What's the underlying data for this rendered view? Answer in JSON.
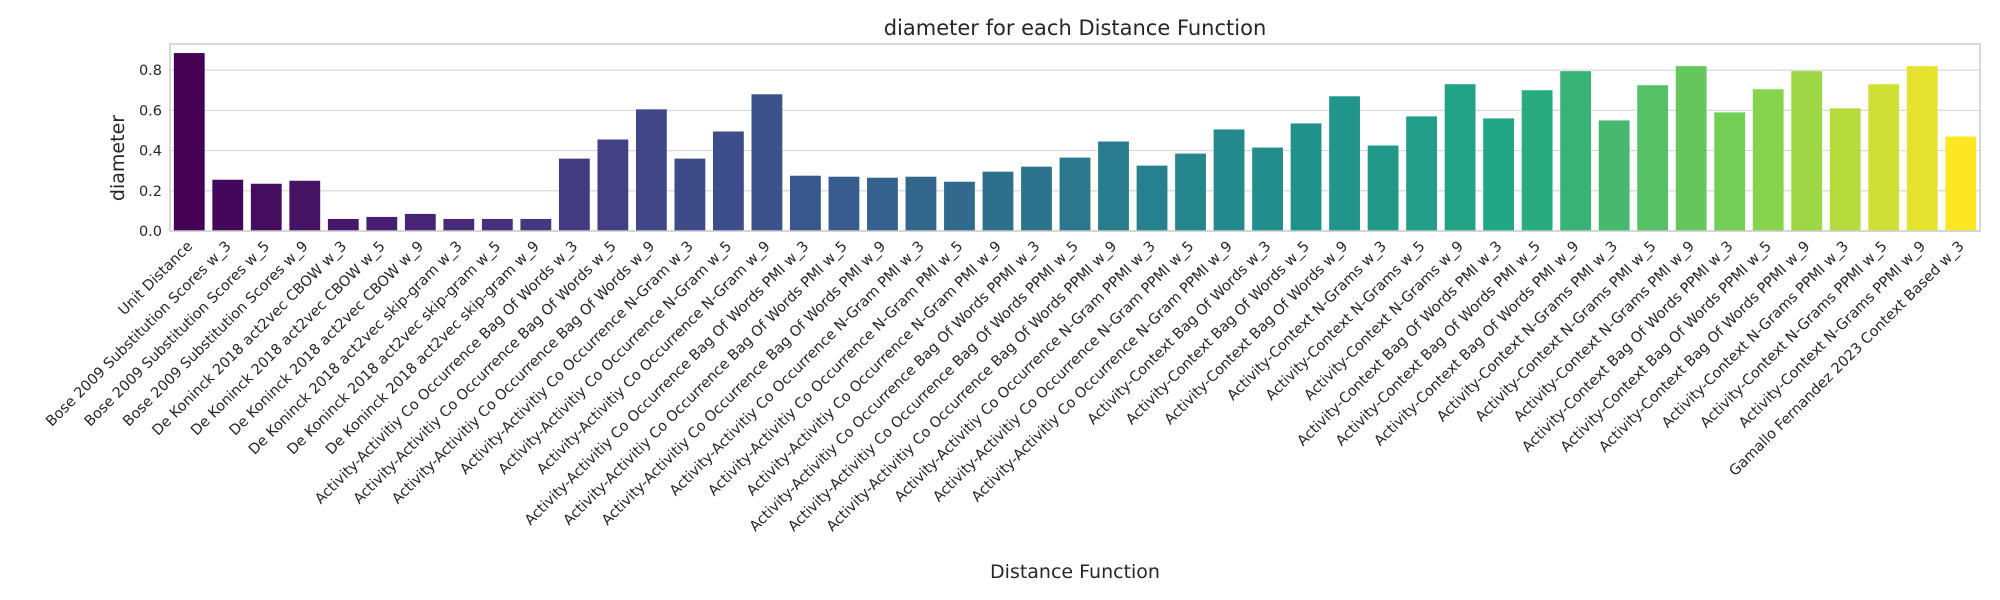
{
  "chart_data": {
    "type": "bar",
    "title": "diameter for each Distance Function",
    "xlabel": "Distance Function",
    "ylabel": "diameter",
    "ylim": [
      0,
      0.93
    ],
    "yticks": [
      "0.0",
      "0.2",
      "0.4",
      "0.6",
      "0.8"
    ],
    "grid": true,
    "palette": "viridis",
    "categories": [
      "Unit Distance",
      "Bose 2009 Substitution Scores w_3",
      "Bose 2009 Substitution Scores w_5",
      "Bose 2009 Substitution Scores w_9",
      "De Koninck 2018 act2vec CBOW w_3",
      "De Koninck 2018 act2vec CBOW w_5",
      "De Koninck 2018 act2vec CBOW w_9",
      "De Koninck 2018 act2vec skip-gram w_3",
      "De Koninck 2018 act2vec skip-gram w_5",
      "De Koninck 2018 act2vec skip-gram w_9",
      "Activity-Activitiy Co Occurrence Bag Of Words w_3",
      "Activity-Activitiy Co Occurrence Bag Of Words w_5",
      "Activity-Activitiy Co Occurrence Bag Of Words w_9",
      "Activity-Activitiy Co Occurrence N-Gram w_3",
      "Activity-Activitiy Co Occurrence N-Gram w_5",
      "Activity-Activitiy Co Occurrence N-Gram w_9",
      "Activity-Activitiy Co Occurrence Bag Of Words PMI w_3",
      "Activity-Activitiy Co Occurrence Bag Of Words PMI w_5",
      "Activity-Activitiy Co Occurrence Bag Of Words PMI w_9",
      "Activity-Activitiy Co Occurrence N-Gram PMI w_3",
      "Activity-Activitiy Co Occurrence N-Gram PMI w_5",
      "Activity-Activitiy Co Occurrence N-Gram PMI w_9",
      "Activity-Activitiy Co Occurrence Bag Of Words PPMI w_3",
      "Activity-Activitiy Co Occurrence Bag Of Words PPMI w_5",
      "Activity-Activitiy Co Occurrence Bag Of Words PPMI w_9",
      "Activity-Activitiy Co Occurrence N-Gram PPMI w_3",
      "Activity-Activitiy Co Occurrence N-Gram PPMI w_5",
      "Activity-Activitiy Co Occurrence N-Gram PPMI w_9",
      "Activity-Context Bag Of Words w_3",
      "Activity-Context Bag Of Words w_5",
      "Activity-Context Bag Of Words w_9",
      "Activity-Context N-Grams w_3",
      "Activity-Context N-Grams w_5",
      "Activity-Context N-Grams w_9",
      "Activity-Context Bag Of Words PMI w_3",
      "Activity-Context Bag Of Words PMI w_5",
      "Activity-Context Bag Of Words PMI w_9",
      "Activity-Context N-Grams PMI w_3",
      "Activity-Context N-Grams PMI w_5",
      "Activity-Context N-Grams PMI w_9",
      "Activity-Context Bag Of Words PPMI w_3",
      "Activity-Context Bag Of Words PPMI w_5",
      "Activity-Context Bag Of Words PPMI w_9",
      "Activity-Context N-Grams PPMI w_3",
      "Activity-Context N-Grams PPMI w_5",
      "Activity-Context N-Grams PPMI w_9",
      "Gamallo Fernandez 2023 Context Based w_3"
    ],
    "values": [
      0.885,
      0.255,
      0.235,
      0.25,
      0.06,
      0.07,
      0.085,
      0.06,
      0.06,
      0.06,
      0.36,
      0.455,
      0.605,
      0.36,
      0.495,
      0.68,
      0.275,
      0.27,
      0.265,
      0.27,
      0.245,
      0.295,
      0.32,
      0.365,
      0.445,
      0.325,
      0.385,
      0.505,
      0.415,
      0.535,
      0.67,
      0.425,
      0.57,
      0.73,
      0.56,
      0.7,
      0.795,
      0.55,
      0.725,
      0.82,
      0.59,
      0.705,
      0.795,
      0.61,
      0.73,
      0.82,
      0.47
    ]
  }
}
